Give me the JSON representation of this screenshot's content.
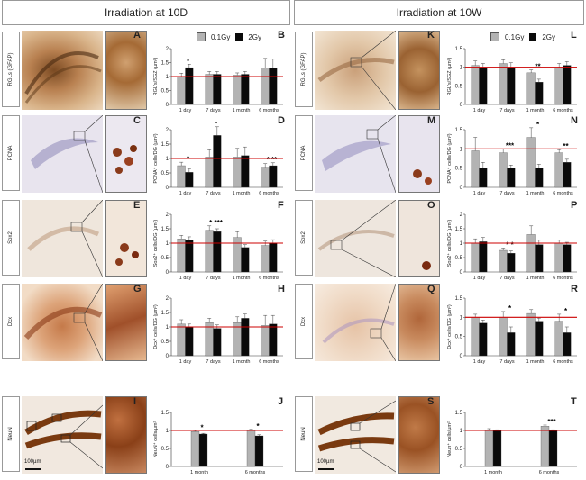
{
  "headers": {
    "left": "Irradiation at 10D",
    "right": "Irradiation at 10W"
  },
  "legend": {
    "a": "0.1Gy",
    "b": "2Gy"
  },
  "colors": {
    "gray": "#b3b3b3",
    "black": "#0a0a0a",
    "ref": "#cc0000"
  },
  "scalebar": "100µm",
  "rows": [
    {
      "label": "RGLs (GFAP)"
    },
    {
      "label": "PCNA"
    },
    {
      "label": "Sox2"
    },
    {
      "label": "Dcx"
    },
    {
      "label": "NeuN"
    }
  ],
  "panels": {
    "A": "A",
    "B": "B",
    "C": "C",
    "D": "D",
    "E": "E",
    "F": "F",
    "G": "G",
    "H": "H",
    "I": "I",
    "J": "J",
    "K": "K",
    "L": "L",
    "M": "M",
    "N": "N",
    "O": "O",
    "P": "P",
    "Q": "Q",
    "R": "R",
    "S": "S",
    "T": "T"
  },
  "chart_data": [
    {
      "id": "B",
      "type": "bar",
      "ylabel": "RGL's/SGZ (µm²)",
      "ylim": [
        0,
        2
      ],
      "yticks": [
        "0",
        "0.5",
        "1",
        "1.5",
        "2"
      ],
      "categories": [
        "1 day",
        "7 days",
        "1 month",
        "6 months"
      ],
      "reference": 1,
      "series": [
        {
          "name": "0.1Gy",
          "values": [
            1.0,
            1.08,
            1.05,
            1.3
          ],
          "err": [
            0.12,
            0.1,
            0.08,
            0.35
          ]
        },
        {
          "name": "2Gy",
          "values": [
            1.32,
            1.08,
            1.08,
            1.3
          ],
          "err": [
            0.12,
            0.1,
            0.1,
            0.32
          ]
        }
      ],
      "sig": [
        "*",
        "",
        "",
        ""
      ]
    },
    {
      "id": "D",
      "type": "bar",
      "ylabel": "PCNA⁺ cells/DG (µm²)",
      "ylim": [
        0,
        2
      ],
      "yticks": [
        "0",
        "0.5",
        "1",
        "1.5",
        "2"
      ],
      "categories": [
        "1 day",
        "7 days",
        "1 month",
        "6 months"
      ],
      "reference": 1,
      "series": [
        {
          "name": "0.1Gy",
          "values": [
            0.75,
            1.05,
            1.05,
            0.7
          ],
          "err": [
            0.12,
            0.25,
            0.3,
            0.12
          ]
        },
        {
          "name": "2Gy",
          "values": [
            0.52,
            1.8,
            1.1,
            0.75
          ],
          "err": [
            0.12,
            0.3,
            0.3,
            0.1
          ]
        }
      ],
      "sig": [
        "*",
        "*",
        "",
        "* **"
      ]
    },
    {
      "id": "F",
      "type": "bar",
      "ylabel": "Sox2⁺ cells/DG (µm²)",
      "ylim": [
        0,
        2
      ],
      "yticks": [
        "0",
        "0.5",
        "1",
        "1.5",
        "2"
      ],
      "categories": [
        "1 day",
        "7 days",
        "1 month",
        "6 months"
      ],
      "reference": 1,
      "series": [
        {
          "name": "0.1Gy",
          "values": [
            1.15,
            1.45,
            1.2,
            0.92
          ],
          "err": [
            0.12,
            0.15,
            0.2,
            0.15
          ]
        },
        {
          "name": "2Gy",
          "values": [
            1.1,
            1.4,
            0.85,
            1.0
          ],
          "err": [
            0.12,
            0.1,
            0.1,
            0.12
          ]
        }
      ],
      "sig": [
        "",
        "* ***",
        "",
        ""
      ]
    },
    {
      "id": "H",
      "type": "bar",
      "ylabel": "Dcx⁺ cells/DG (µm²)",
      "ylim": [
        0,
        2
      ],
      "yticks": [
        "0",
        "0.5",
        "1",
        "1.5",
        "2"
      ],
      "categories": [
        "1 day",
        "7 days",
        "1 month",
        "6 months"
      ],
      "reference": 1,
      "series": [
        {
          "name": "0.1Gy",
          "values": [
            1.1,
            1.15,
            1.15,
            1.05
          ],
          "err": [
            0.15,
            0.15,
            0.2,
            0.35
          ]
        },
        {
          "name": "2Gy",
          "values": [
            1.0,
            0.95,
            1.3,
            1.1
          ],
          "err": [
            0.1,
            0.12,
            0.15,
            0.3
          ]
        }
      ],
      "sig": [
        "",
        "",
        "",
        ""
      ]
    },
    {
      "id": "J",
      "type": "bar",
      "ylabel": "NeuN⁺ cells/µm²",
      "ylim": [
        0,
        1.5
      ],
      "yticks": [
        "0",
        "0.5",
        "1",
        "1.5"
      ],
      "categories": [
        "1 month",
        "6 months"
      ],
      "reference": 1,
      "series": [
        {
          "name": "0.1Gy",
          "values": [
            0.97,
            1.0
          ],
          "err": [
            0.02,
            0.03
          ]
        },
        {
          "name": "2Gy",
          "values": [
            0.9,
            0.85
          ],
          "err": [
            0.02,
            0.03
          ]
        }
      ],
      "sig": [
        "*",
        "*"
      ]
    },
    {
      "id": "L",
      "type": "bar",
      "ylabel": "RGL's/SGZ (µm²)",
      "ylim": [
        0,
        1.5
      ],
      "yticks": [
        "0",
        "0.5",
        "1",
        "1.5"
      ],
      "categories": [
        "1 day",
        "7 days",
        "1 month",
        "6 months"
      ],
      "reference": 1,
      "series": [
        {
          "name": "0.1Gy",
          "values": [
            1.05,
            1.1,
            0.85,
            1.0
          ],
          "err": [
            0.12,
            0.1,
            0.08,
            0.1
          ]
        },
        {
          "name": "2Gy",
          "values": [
            0.98,
            1.0,
            0.6,
            1.05
          ],
          "err": [
            0.12,
            0.12,
            0.08,
            0.1
          ]
        }
      ],
      "sig": [
        "",
        "",
        "**",
        ""
      ]
    },
    {
      "id": "N",
      "type": "bar",
      "ylabel": "PCNA⁺ cells/DG (µm²)",
      "ylim": [
        0,
        1.5
      ],
      "yticks": [
        "0",
        "0.5",
        "1",
        "1.5"
      ],
      "categories": [
        "1 day",
        "7 days",
        "1 month",
        "6 months"
      ],
      "reference": 1,
      "series": [
        {
          "name": "0.1Gy",
          "values": [
            0.95,
            0.9,
            1.3,
            0.9
          ],
          "err": [
            0.35,
            0.1,
            0.25,
            0.08
          ]
        },
        {
          "name": "2Gy",
          "values": [
            0.5,
            0.5,
            0.5,
            0.65
          ],
          "err": [
            0.15,
            0.08,
            0.1,
            0.08
          ]
        }
      ],
      "sig": [
        "",
        "***",
        "*",
        "**"
      ]
    },
    {
      "id": "P",
      "type": "bar",
      "ylabel": "Sox2⁺ cells/DG (µm²)",
      "ylim": [
        0,
        2
      ],
      "yticks": [
        "0",
        "0.5",
        "1",
        "1.5",
        "2"
      ],
      "categories": [
        "1 day",
        "7 days",
        "1 month",
        "6 months"
      ],
      "reference": 1,
      "series": [
        {
          "name": "0.1Gy",
          "values": [
            1.0,
            0.75,
            1.3,
            1.0
          ],
          "err": [
            0.15,
            0.08,
            0.3,
            0.1
          ]
        },
        {
          "name": "2Gy",
          "values": [
            1.05,
            0.65,
            0.95,
            0.95
          ],
          "err": [
            0.15,
            0.08,
            0.15,
            0.08
          ]
        }
      ],
      "sig": [
        "",
        "* *",
        "",
        ""
      ]
    },
    {
      "id": "R",
      "type": "bar",
      "ylabel": "Dcx⁺ cells/DG (µm²)",
      "ylim": [
        0,
        1.5
      ],
      "yticks": [
        "0",
        "0.5",
        "1",
        "1.5"
      ],
      "categories": [
        "1 day",
        "7 days",
        "1 month",
        "6 months"
      ],
      "reference": 1,
      "series": [
        {
          "name": "0.1Gy",
          "values": [
            1.0,
            1.0,
            1.1,
            0.9
          ],
          "err": [
            0.08,
            0.15,
            0.1,
            0.18
          ]
        },
        {
          "name": "2Gy",
          "values": [
            0.85,
            0.6,
            0.9,
            0.6
          ],
          "err": [
            0.08,
            0.15,
            0.08,
            0.15
          ]
        }
      ],
      "sig": [
        "",
        "*",
        "",
        "*"
      ]
    },
    {
      "id": "T",
      "type": "bar",
      "ylabel": "Neun⁺ cells/µm²",
      "ylim": [
        0,
        1.5
      ],
      "yticks": [
        "0",
        "0.5",
        "1",
        "1.5"
      ],
      "categories": [
        "1 month",
        "6 months"
      ],
      "reference": 1,
      "series": [
        {
          "name": "0.1Gy",
          "values": [
            1.02,
            1.12
          ],
          "err": [
            0.03,
            0.03
          ]
        },
        {
          "name": "2Gy",
          "values": [
            1.0,
            1.0
          ],
          "err": [
            0.02,
            0.02
          ]
        }
      ],
      "sig": [
        "",
        "***"
      ]
    }
  ]
}
